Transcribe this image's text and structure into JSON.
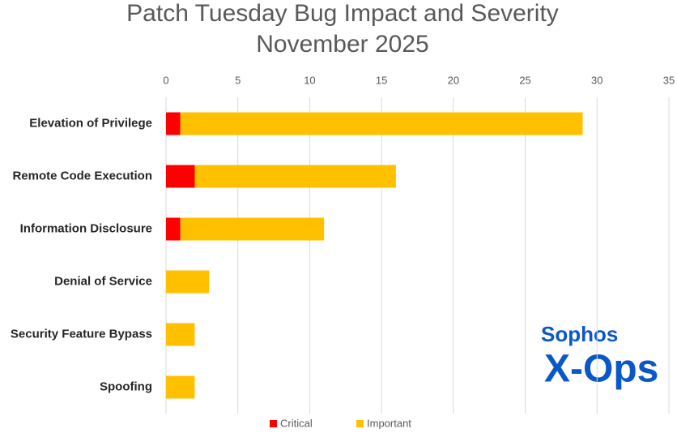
{
  "chart_data": {
    "type": "bar",
    "orientation": "horizontal",
    "stacked": true,
    "title": [
      "Patch Tuesday Bug Impact and Severity",
      "November 2025"
    ],
    "categories": [
      "Elevation of Privilege",
      "Remote Code Execution",
      "Information Disclosure",
      "Denial of Service",
      "Security Feature Bypass",
      "Spoofing"
    ],
    "series": [
      {
        "name": "Critical",
        "color": "#ff0000",
        "values": [
          1,
          2,
          1,
          0,
          0,
          0
        ]
      },
      {
        "name": "Important",
        "color": "#ffc000",
        "values": [
          28,
          14,
          10,
          3,
          2,
          2
        ]
      }
    ],
    "xlim": [
      0,
      35
    ],
    "xticks": [
      0,
      5,
      10,
      15,
      20,
      25,
      30,
      35
    ],
    "grid": true,
    "legend": "bottom"
  },
  "logo": {
    "line1": "Sophos",
    "line2": "X-Ops"
  }
}
